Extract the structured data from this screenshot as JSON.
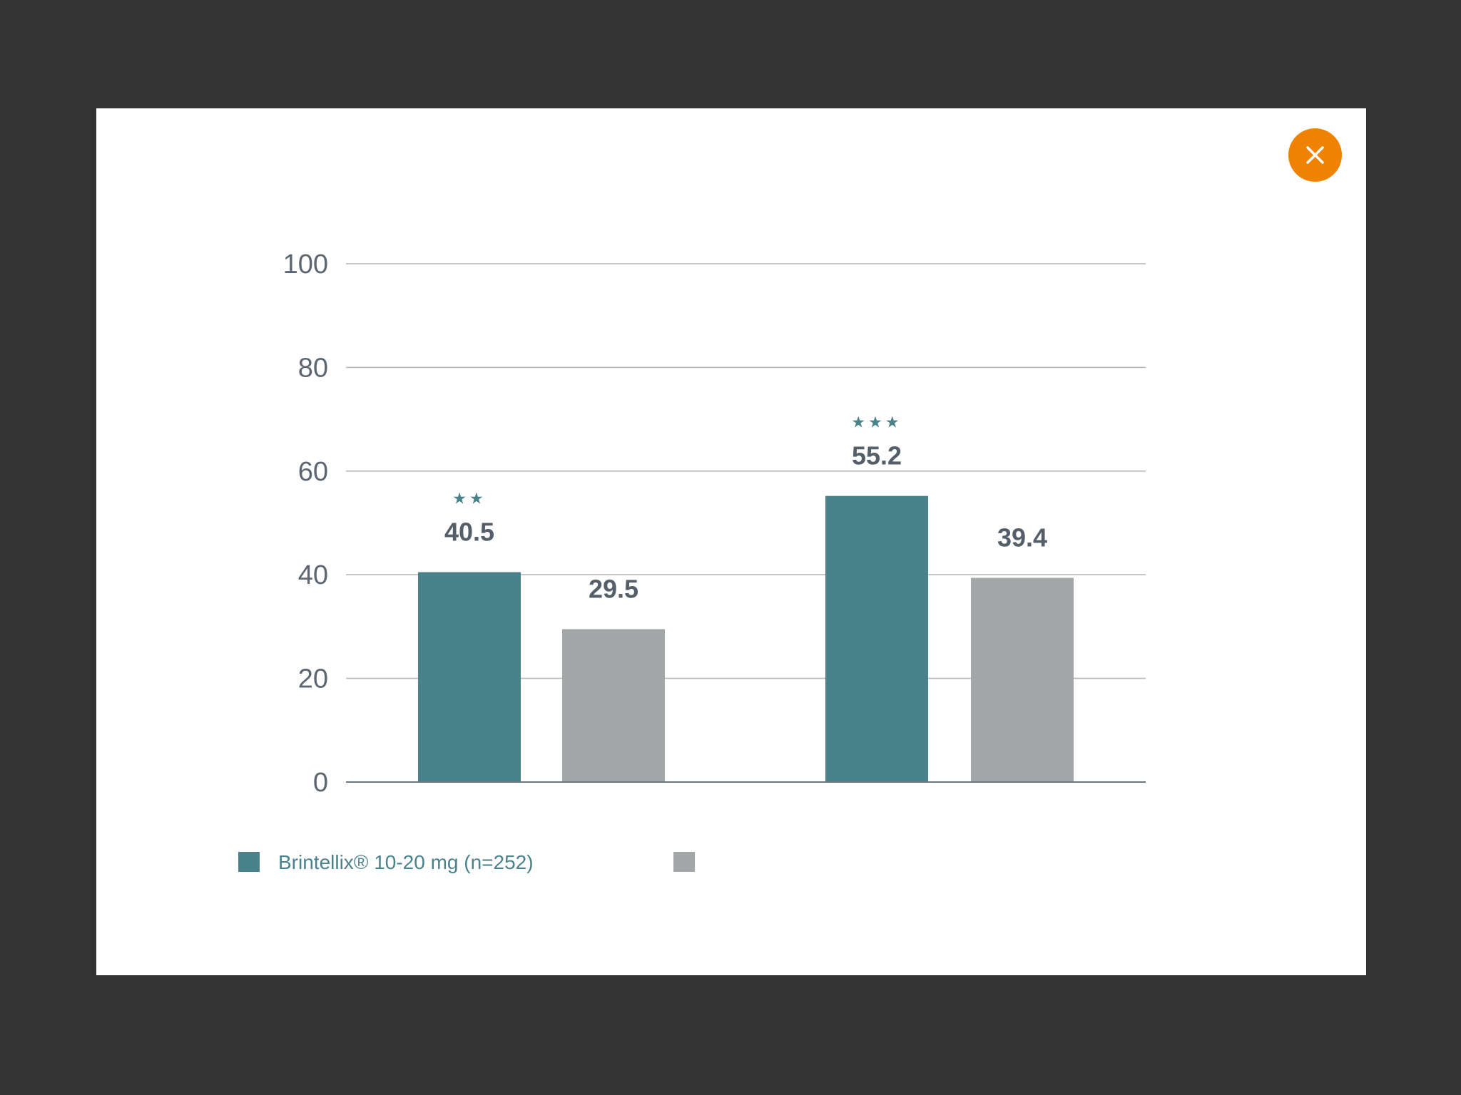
{
  "colors": {
    "backdrop": "#333333",
    "modal_bg": "#ffffff",
    "close_button": "#ef8200",
    "series_primary": "#4a828c",
    "series_secondary": "#a4a7a8",
    "axis_text": "#5c6670",
    "value_text": "#545f6a",
    "gridline": "#b4b8bb",
    "baseline": "#6c7680"
  },
  "close_button": {
    "icon": "close-icon"
  },
  "chart_data": {
    "type": "bar",
    "categories": [
      "",
      ""
    ],
    "series": [
      {
        "name": "Brintellix® 10-20 mg (n=252)",
        "color": "#4a828c",
        "values": [
          40.5,
          55.2
        ],
        "value_labels": [
          "40.5",
          "55.2"
        ],
        "annotations": [
          "★★",
          "★★★"
        ]
      },
      {
        "name": "",
        "color": "#a4a7a8",
        "values": [
          29.5,
          39.4
        ],
        "value_labels": [
          "29.5",
          "39.4"
        ],
        "annotations": [
          "",
          ""
        ]
      }
    ],
    "ylim": [
      0,
      100
    ],
    "yticks": [
      0,
      20,
      40,
      60,
      80,
      100
    ],
    "ytick_labels": [
      "0",
      "20",
      "40",
      "60",
      "80",
      "100"
    ],
    "grid": true,
    "legend_position": "bottom-left",
    "title": "",
    "xlabel": "",
    "ylabel": ""
  }
}
